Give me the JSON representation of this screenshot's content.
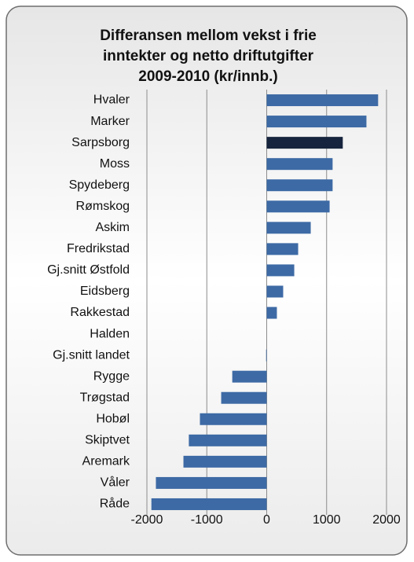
{
  "chart_data": {
    "type": "barh",
    "title": [
      "Differansen mellom vekst i frie",
      "inntekter og netto driftutgifter",
      "2009-2010 (kr/innb.)"
    ],
    "categories": [
      "Hvaler",
      "Marker",
      "Sarpsborg",
      "Moss",
      "Spydeberg",
      "Rømskog",
      "Askim",
      "Fredrikstad",
      "Gj.snitt Østfold",
      "Eidsberg",
      "Rakkestad",
      "Halden",
      "Gj.snitt landet",
      "Rygge",
      "Trøgstad",
      "Hobøl",
      "Skiptvet",
      "Aremark",
      "Våler",
      "Råde"
    ],
    "values": [
      1860,
      1665,
      1270,
      1100,
      1100,
      1050,
      735,
      525,
      460,
      275,
      170,
      0,
      -10,
      -575,
      -760,
      -1115,
      -1300,
      -1390,
      -1850,
      -1925
    ],
    "colors": [
      "#3d6aa5",
      "#3d6aa5",
      "#16243d",
      "#3d6aa5",
      "#3d6aa5",
      "#3d6aa5",
      "#3d6aa5",
      "#3d6aa5",
      "#3d6aa5",
      "#3d6aa5",
      "#3d6aa5",
      "#3d6aa5",
      "#3d6aa5",
      "#3d6aa5",
      "#3d6aa5",
      "#3d6aa5",
      "#3d6aa5",
      "#3d6aa5",
      "#3d6aa5",
      "#3d6aa5"
    ],
    "xlim": [
      -2000,
      2000
    ],
    "xticks": [
      -2000,
      -1000,
      0,
      1000,
      2000
    ],
    "grid": true
  }
}
